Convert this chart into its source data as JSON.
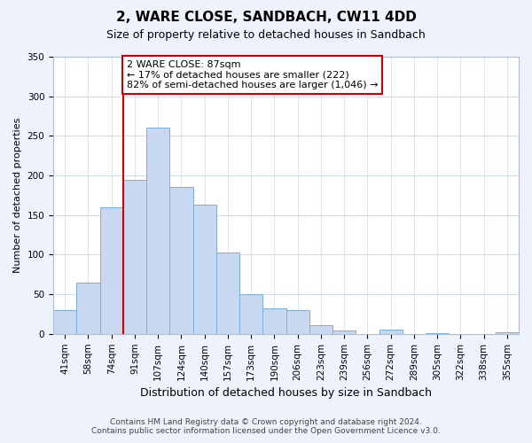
{
  "title": "2, WARE CLOSE, SANDBACH, CW11 4DD",
  "subtitle": "Size of property relative to detached houses in Sandbach",
  "xlabel": "Distribution of detached houses by size in Sandbach",
  "ylabel": "Number of detached properties",
  "bin_labels": [
    "41sqm",
    "58sqm",
    "74sqm",
    "91sqm",
    "107sqm",
    "124sqm",
    "140sqm",
    "157sqm",
    "173sqm",
    "190sqm",
    "206sqm",
    "223sqm",
    "239sqm",
    "256sqm",
    "272sqm",
    "289sqm",
    "305sqm",
    "322sqm",
    "338sqm",
    "355sqm"
  ],
  "bar_values": [
    30,
    65,
    160,
    195,
    260,
    185,
    163,
    103,
    50,
    32,
    30,
    11,
    4,
    0,
    5,
    0,
    1,
    0,
    0,
    2
  ],
  "bar_color": "#c8d8f0",
  "bar_edge_color": "#7aaedc",
  "vline_position": 2.5,
  "property_label": "2 WARE CLOSE: 87sqm",
  "annotation_line1": "← 17% of detached houses are smaller (222)",
  "annotation_line2": "82% of semi-detached houses are larger (1,046) →",
  "vline_color": "#cc0000",
  "annotation_box_edge": "#cc0000",
  "ylim": [
    0,
    350
  ],
  "yticks": [
    0,
    50,
    100,
    150,
    200,
    250,
    300,
    350
  ],
  "footer_line1": "Contains HM Land Registry data © Crown copyright and database right 2024.",
  "footer_line2": "Contains public sector information licensed under the Open Government Licence v3.0.",
  "bg_color": "#eef2fb",
  "plot_bg_color": "#ffffff",
  "grid_color": "#d0daea",
  "annotation_fontsize": 8,
  "title_fontsize": 11,
  "subtitle_fontsize": 9,
  "xlabel_fontsize": 9,
  "ylabel_fontsize": 8,
  "tick_fontsize": 7.5,
  "footer_fontsize": 6.5
}
